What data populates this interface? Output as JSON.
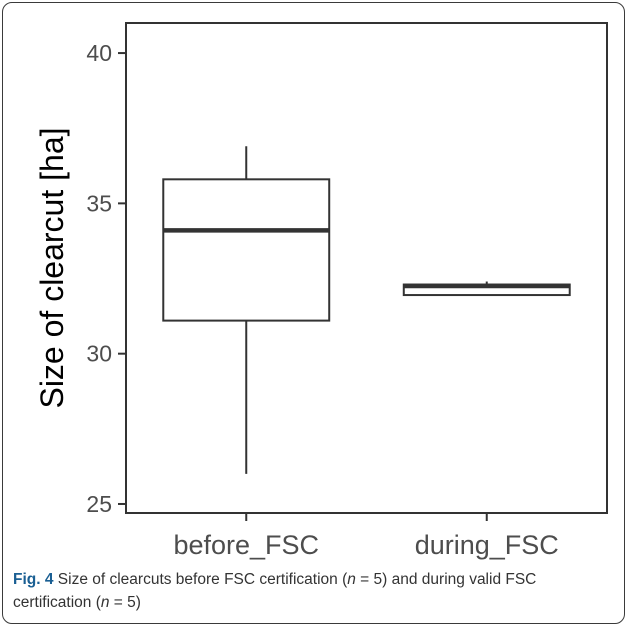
{
  "chart_data": {
    "type": "box",
    "ylabel": "Size of clearcut [ha]",
    "ylim": [
      24.7,
      41.0
    ],
    "yticks": [
      25,
      30,
      35,
      40
    ],
    "categories": [
      "before_FSC",
      "during_FSC"
    ],
    "boxes": [
      {
        "category": "before_FSC",
        "min": 26.0,
        "q1": 31.1,
        "median": 34.1,
        "q3": 35.8,
        "max": 36.9
      },
      {
        "category": "during_FSC",
        "min": 31.95,
        "q1": 31.95,
        "median": 32.25,
        "q3": 32.3,
        "max": 32.4
      }
    ],
    "grid": false,
    "colors": {
      "box_fill": "#ffffff",
      "box_stroke": "#333333",
      "axis": "#333333"
    }
  },
  "caption": {
    "label": "Fig. 4",
    "part1": " Size of clearcuts before FSC certification (",
    "n_var1": "n",
    "n_val1": " = 5) and during valid FSC certification (",
    "n_var2": "n",
    "n_val2": " = 5)"
  },
  "colors": {
    "label_accent": "#1a5f93"
  }
}
